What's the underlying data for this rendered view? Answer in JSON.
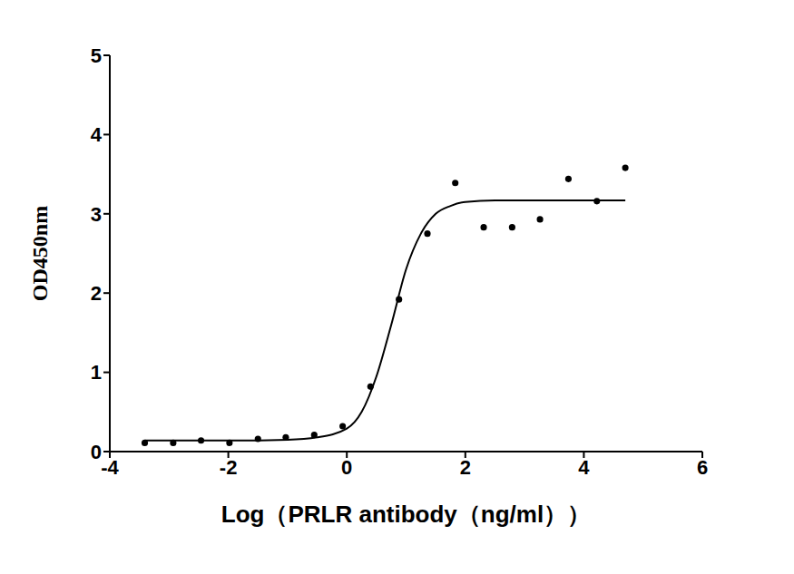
{
  "chart_data": {
    "type": "scatter",
    "xlabel": "Log（PRLR antibody（ng/ml））",
    "ylabel": "OD450nm",
    "xlim": [
      -4,
      6
    ],
    "xticks": [
      -4,
      -2,
      0,
      2,
      4,
      6
    ],
    "ylim": [
      0,
      5
    ],
    "yticks": [
      0,
      1,
      2,
      3,
      4,
      5
    ],
    "grid": false,
    "series": [
      {
        "type": "scatter",
        "marker": "circle",
        "color": "#000000",
        "x": [
          -3.41,
          -2.93,
          -2.46,
          -1.98,
          -1.5,
          -1.03,
          -0.55,
          -0.07,
          0.4,
          0.88,
          1.36,
          1.83,
          2.31,
          2.79,
          3.26,
          3.74,
          4.22,
          4.7
        ],
        "values": [
          0.11,
          0.11,
          0.14,
          0.11,
          0.16,
          0.18,
          0.21,
          0.32,
          0.82,
          1.92,
          2.75,
          3.39,
          2.83,
          2.83,
          2.93,
          3.44,
          3.16,
          3.58
        ]
      },
      {
        "type": "line",
        "line_style": "solid",
        "color": "#000000",
        "x": [
          -3.41,
          -2,
          -1,
          -0.5,
          0,
          0.25,
          0.5,
          0.75,
          1,
          1.25,
          1.5,
          1.75,
          2,
          2.5,
          3,
          4,
          4.7
        ],
        "values": [
          0.14,
          0.14,
          0.15,
          0.18,
          0.29,
          0.5,
          0.95,
          1.6,
          2.3,
          2.75,
          3.0,
          3.1,
          3.15,
          3.17,
          3.17,
          3.17,
          3.17
        ]
      }
    ]
  }
}
